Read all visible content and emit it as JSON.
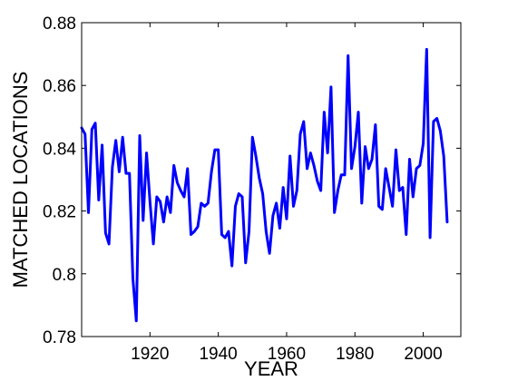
{
  "chart_data": {
    "type": "line",
    "title": "",
    "xlabel": "YEAR",
    "ylabel": "MATCHED LOCATIONS",
    "xlim": [
      1900,
      2011
    ],
    "ylim": [
      0.78,
      0.88
    ],
    "x_ticks": [
      1920,
      1940,
      1960,
      1980,
      2000
    ],
    "x_tick_labels": [
      "1920",
      "1940",
      "1960",
      "1980",
      "2000"
    ],
    "y_ticks": [
      0.78,
      0.8,
      0.82,
      0.84,
      0.86,
      0.88
    ],
    "y_tick_labels": [
      "0.78",
      "0.8",
      "0.82",
      "0.84",
      "0.86",
      "0.88"
    ],
    "grid": false,
    "line_color": "#0000ff",
    "series": [
      {
        "x": [
          1900,
          1901,
          1902,
          1903,
          1904,
          1905,
          1906,
          1907,
          1908,
          1909,
          1910,
          1911,
          1912,
          1913,
          1914,
          1915,
          1916,
          1917,
          1918,
          1919,
          1920,
          1921,
          1922,
          1923,
          1924,
          1925,
          1926,
          1927,
          1928,
          1929,
          1930,
          1931,
          1932,
          1933,
          1934,
          1935,
          1936,
          1937,
          1938,
          1939,
          1940,
          1941,
          1942,
          1943,
          1944,
          1945,
          1946,
          1947,
          1948,
          1949,
          1950,
          1951,
          1952,
          1953,
          1954,
          1955,
          1956,
          1957,
          1958,
          1959,
          1960,
          1961,
          1962,
          1963,
          1964,
          1965,
          1966,
          1967,
          1968,
          1969,
          1970,
          1971,
          1972,
          1973,
          1974,
          1975,
          1976,
          1977,
          1978,
          1979,
          1980,
          1981,
          1982,
          1983,
          1984,
          1985,
          1986,
          1987,
          1988,
          1989,
          1990,
          1991,
          1992,
          1993,
          1994,
          1995,
          1996,
          1997,
          1998,
          1999,
          2000,
          2001,
          2002,
          2003,
          2004,
          2005,
          2006,
          2007
        ],
        "values": [
          0.8465,
          0.8445,
          0.8195,
          0.846,
          0.848,
          0.8235,
          0.841,
          0.813,
          0.8095,
          0.834,
          0.8425,
          0.8325,
          0.8435,
          0.832,
          0.832,
          0.7985,
          0.785,
          0.844,
          0.817,
          0.8385,
          0.823,
          0.8095,
          0.8245,
          0.823,
          0.8165,
          0.8245,
          0.8195,
          0.8345,
          0.829,
          0.8265,
          0.8245,
          0.8335,
          0.8125,
          0.8135,
          0.815,
          0.8225,
          0.8215,
          0.8225,
          0.8325,
          0.8395,
          0.8395,
          0.8125,
          0.8115,
          0.8135,
          0.8025,
          0.8215,
          0.8255,
          0.8245,
          0.8035,
          0.8135,
          0.8435,
          0.8375,
          0.8305,
          0.8255,
          0.8135,
          0.8065,
          0.8185,
          0.8225,
          0.8145,
          0.8275,
          0.8175,
          0.8375,
          0.8215,
          0.8265,
          0.8445,
          0.8485,
          0.8335,
          0.8385,
          0.8345,
          0.8295,
          0.8265,
          0.8515,
          0.8385,
          0.8595,
          0.8195,
          0.8265,
          0.8315,
          0.8315,
          0.8695,
          0.8335,
          0.8405,
          0.8515,
          0.8225,
          0.8405,
          0.8335,
          0.8365,
          0.8475,
          0.8215,
          0.8205,
          0.8335,
          0.8275,
          0.8215,
          0.8395,
          0.8265,
          0.8275,
          0.8125,
          0.8365,
          0.8245,
          0.8335,
          0.8345,
          0.8415,
          0.8715,
          0.8115,
          0.8485,
          0.8495,
          0.8455,
          0.8375,
          0.8165
        ]
      }
    ]
  }
}
